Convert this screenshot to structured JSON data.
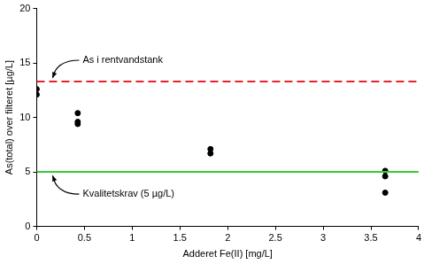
{
  "chart_data": {
    "type": "scatter",
    "x_label": "Adderet Fe(II) [mg/L]",
    "y_label": "As(total) over filteret [µg/L]",
    "x": [
      0,
      0,
      0.43,
      0.43,
      0.43,
      1.82,
      1.82,
      3.65,
      3.65,
      3.65
    ],
    "values": [
      12.6,
      12.1,
      10.4,
      9.6,
      9.4,
      7.1,
      6.7,
      5.1,
      4.6,
      3.1
    ],
    "color": "#000000",
    "marker": "circle",
    "xlim": [
      0,
      4
    ],
    "xticks": [
      0,
      0.5,
      1,
      1.5,
      2,
      2.5,
      3,
      3.5,
      4
    ],
    "ylim": [
      0,
      20
    ],
    "yticks": [
      0,
      5,
      10,
      15,
      20
    ],
    "grid": false,
    "annotations": [
      {
        "text": "As i rentvandstank",
        "y": 13.3,
        "color": "#e8202a",
        "line_style": "dashed"
      },
      {
        "text": "Kvalitetskrav (5 µg/L)",
        "y": 5,
        "color": "#33cc33",
        "line_style": "solid"
      }
    ]
  }
}
